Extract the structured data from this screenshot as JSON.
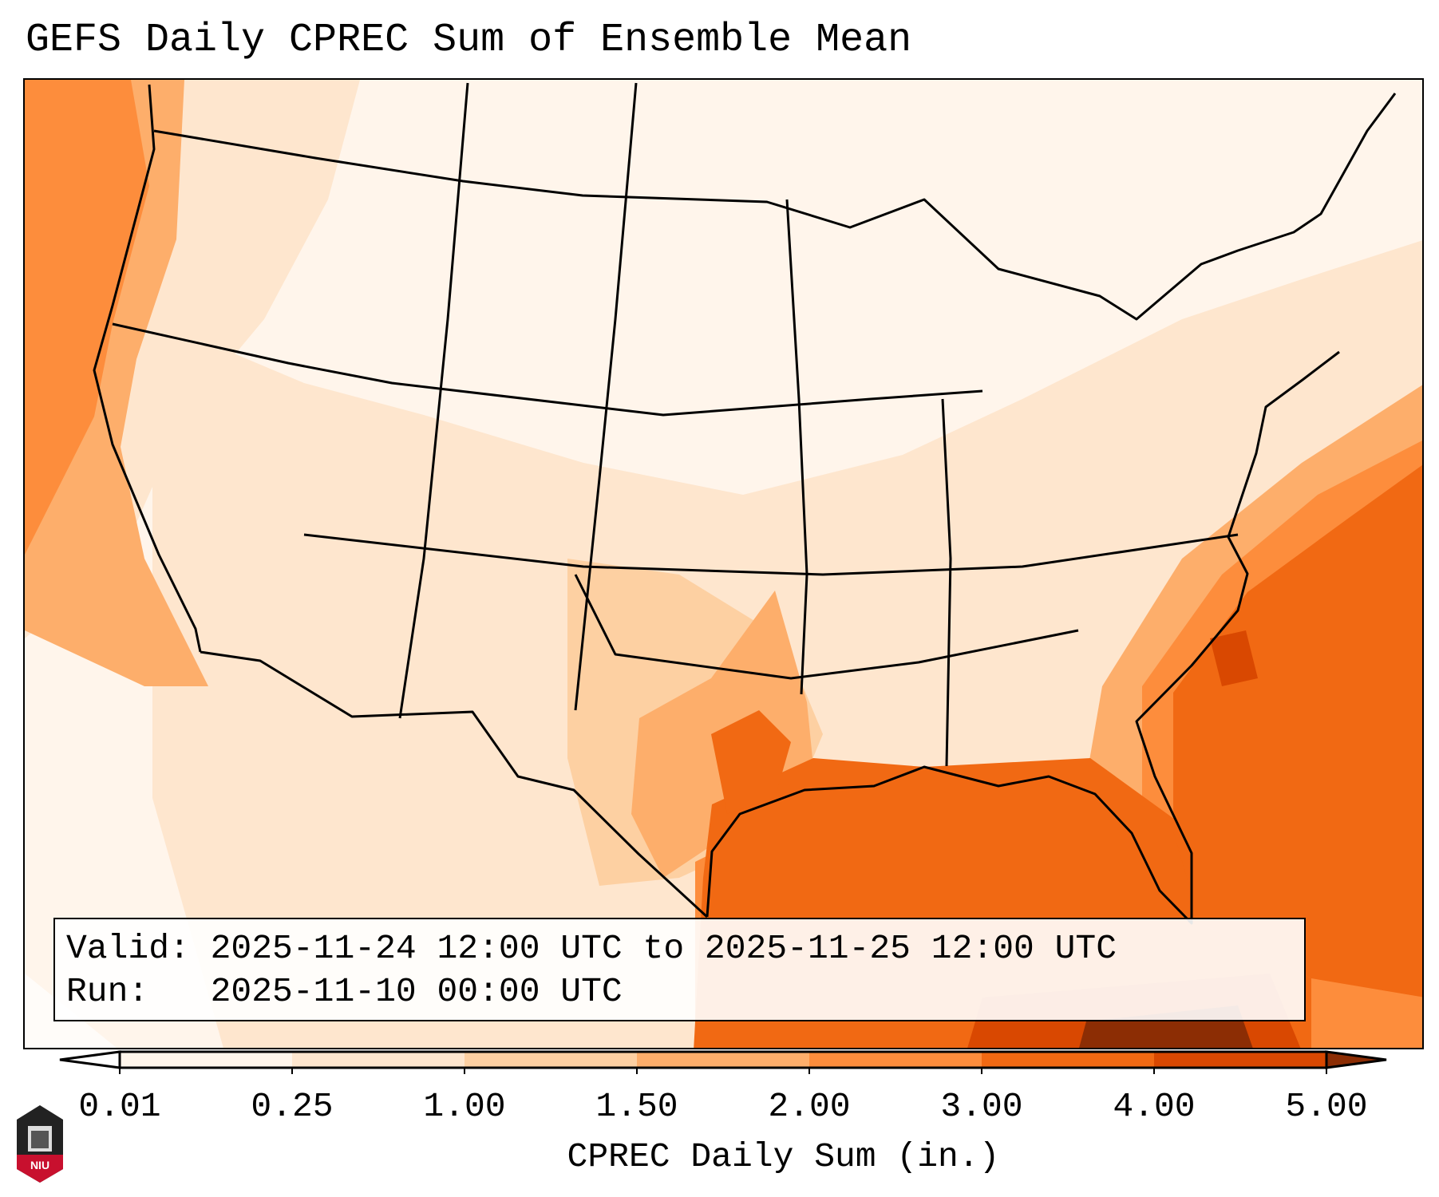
{
  "chart_data": {
    "type": "heatmap",
    "title": "GEFS Daily CPREC Sum of Ensemble Mean",
    "map_region": "CONUS",
    "colorbar": {
      "label": "CPREC Daily Sum (in.)",
      "ticks": [
        "0.01",
        "0.25",
        "1.00",
        "1.50",
        "2.00",
        "3.00",
        "4.00",
        "5.00"
      ],
      "levels": [
        0.01,
        0.25,
        1.0,
        1.5,
        2.0,
        3.0,
        4.0,
        5.0
      ],
      "colors": [
        "#fff5eb",
        "#fee6ce",
        "#fdd0a2",
        "#fdae6b",
        "#fd8d3c",
        "#f16913",
        "#d94801"
      ],
      "under_color": "#ffffff",
      "over_color": "#8c2d04",
      "extend": "both"
    },
    "info": {
      "valid_line": "Valid: 2025-11-24 12:00 UTC to 2025-11-25 12:00 UTC",
      "run_line": "Run:   2025-11-10 00:00 UTC"
    }
  },
  "logo": {
    "text": "NIU"
  }
}
